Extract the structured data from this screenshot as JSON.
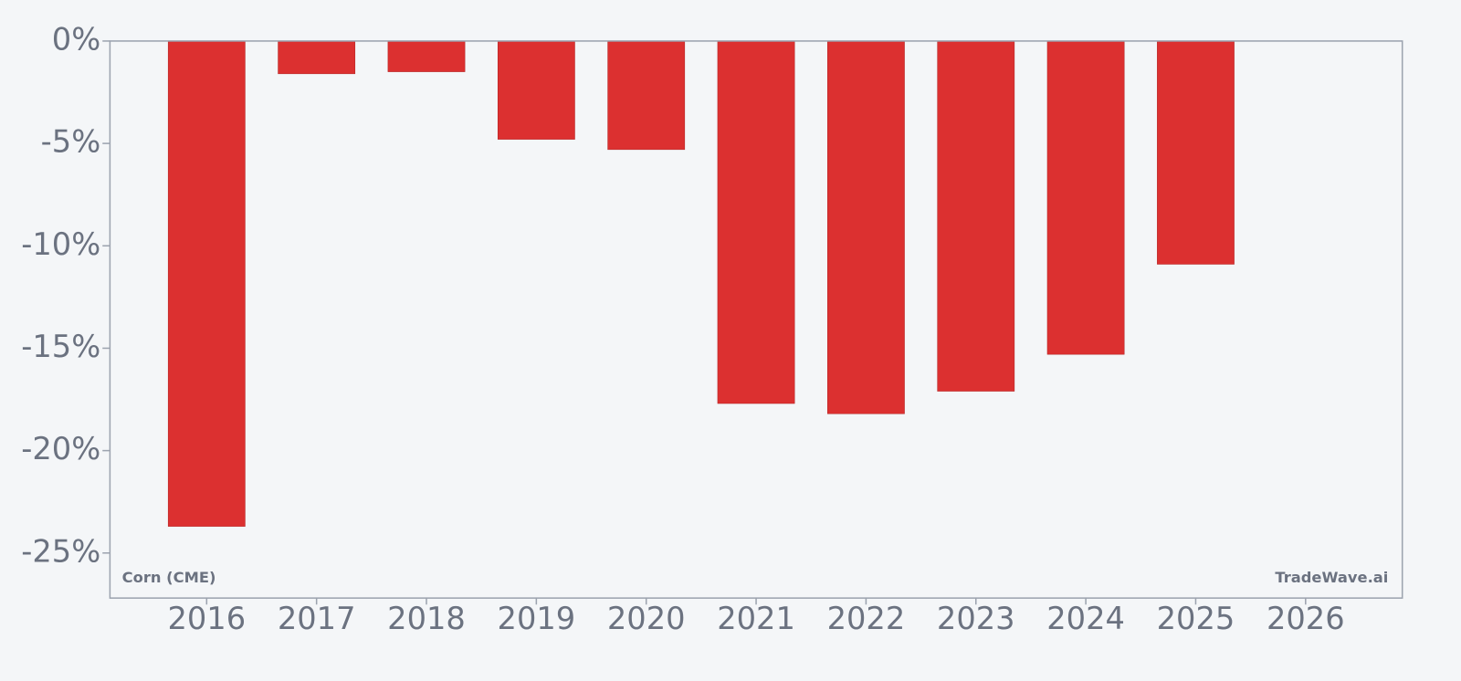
{
  "chart_data": {
    "type": "bar",
    "categories": [
      "2016",
      "2017",
      "2018",
      "2019",
      "2020",
      "2021",
      "2022",
      "2023",
      "2024",
      "2025",
      "2026"
    ],
    "values": [
      -23.7,
      -1.6,
      -1.5,
      -4.8,
      -5.3,
      -17.7,
      -18.2,
      -17.1,
      -15.3,
      -10.9,
      null
    ],
    "color": "#dc3030",
    "ylim": [
      -27.2,
      0
    ],
    "yticks": [
      {
        "value": 0,
        "label": "0%"
      },
      {
        "value": -5,
        "label": "-5%"
      },
      {
        "value": -10,
        "label": "-10%"
      },
      {
        "value": -15,
        "label": "-15%"
      },
      {
        "value": -20,
        "label": "-20%"
      },
      {
        "value": -25,
        "label": "-25%"
      }
    ],
    "annotations": [
      "Corn (CME)",
      "TradeWave.ai"
    ]
  }
}
